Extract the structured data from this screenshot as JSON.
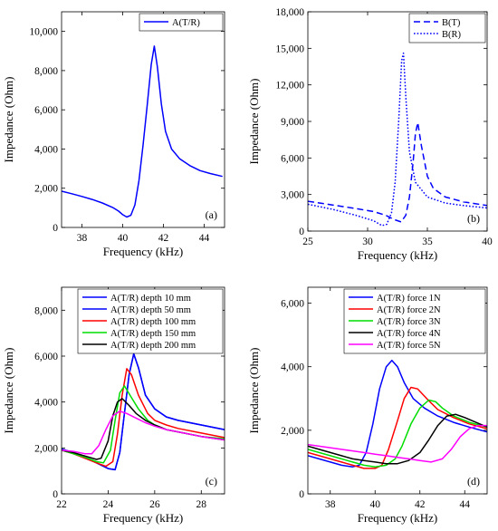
{
  "chart_data": [
    {
      "panel_label": "(a)",
      "type": "line",
      "xlabel": "Frequency (kHz)",
      "ylabel": "Impedance (Ohm)",
      "xlim": [
        37,
        45
      ],
      "ylim": [
        0,
        11000
      ],
      "xticks": [
        38,
        40,
        42,
        44
      ],
      "yticks": [
        0,
        2000,
        4000,
        6000,
        8000,
        10000
      ],
      "ytick_labels": [
        "0",
        "2,000",
        "4,000",
        "6,000",
        "8,000",
        "10,000"
      ],
      "legend_position": "top-right",
      "series": [
        {
          "name": "A(T/R)",
          "color": "#0000ff",
          "style": "solid",
          "x": [
            37,
            37.5,
            38,
            38.5,
            39,
            39.5,
            39.8,
            40,
            40.2,
            40.4,
            40.6,
            40.8,
            41,
            41.2,
            41.4,
            41.55,
            41.7,
            41.9,
            42.1,
            42.4,
            42.8,
            43.3,
            43.8,
            44.3,
            44.9
          ],
          "y": [
            1850,
            1720,
            1580,
            1430,
            1250,
            1020,
            830,
            650,
            530,
            620,
            1150,
            2400,
            4200,
            6200,
            8300,
            9250,
            8200,
            6300,
            4900,
            4000,
            3500,
            3150,
            2900,
            2750,
            2600
          ]
        }
      ]
    },
    {
      "panel_label": "(b)",
      "type": "line",
      "xlabel": "Frequency (kHz)",
      "ylabel": "Impedance (Ohm)",
      "xlim": [
        25,
        40
      ],
      "ylim": [
        0,
        18000
      ],
      "xticks": [
        25,
        30,
        35,
        40
      ],
      "yticks": [
        0,
        3000,
        6000,
        9000,
        12000,
        15000,
        18000
      ],
      "ytick_labels": [
        "0",
        "3,000",
        "6,000",
        "9,000",
        "12,000",
        "15,000",
        "18,000"
      ],
      "legend_position": "top-right",
      "series": [
        {
          "name": "B(T)",
          "color": "#0000ff",
          "style": "dashed",
          "x": [
            25,
            27,
            29,
            30.5,
            31.5,
            32.2,
            32.8,
            33.2,
            33.5,
            33.8,
            34,
            34.2,
            34.5,
            35,
            35.5,
            36.5,
            38,
            40
          ],
          "y": [
            2450,
            2150,
            1850,
            1600,
            1300,
            950,
            750,
            1300,
            2800,
            5600,
            8000,
            8900,
            7000,
            4500,
            3500,
            2800,
            2400,
            2100
          ]
        },
        {
          "name": "B(R)",
          "color": "#0000ff",
          "style": "dotted",
          "x": [
            25,
            27,
            29,
            30.5,
            31.2,
            31.6,
            32,
            32.3,
            32.6,
            32.85,
            33,
            33.2,
            33.5,
            34,
            35,
            36.5,
            38,
            40
          ],
          "y": [
            2200,
            1800,
            1300,
            850,
            450,
            550,
            1500,
            4000,
            9000,
            14000,
            14600,
            11000,
            6500,
            4000,
            2800,
            2300,
            2100,
            1900
          ]
        }
      ]
    },
    {
      "panel_label": "(c)",
      "type": "line",
      "xlabel": "Frequency (kHz)",
      "ylabel": "Impedance (Ohm)",
      "xlim": [
        22,
        29
      ],
      "ylim": [
        0,
        9000
      ],
      "xticks": [
        22,
        24,
        26,
        28
      ],
      "yticks": [
        0,
        2000,
        4000,
        6000,
        8000
      ],
      "ytick_labels": [
        "0",
        "2,000",
        "4,000",
        "6,000",
        "8,000"
      ],
      "legend_position": "top-right",
      "series": [
        {
          "name": "A(T/R) depth 10 mm",
          "color": "#0000ff",
          "style": "solid",
          "x": [
            22,
            22.5,
            23,
            23.5,
            24,
            24.3,
            24.5,
            24.7,
            24.9,
            25.1,
            25.3,
            25.6,
            26,
            26.5,
            27,
            28,
            29
          ],
          "y": [
            1950,
            1800,
            1600,
            1350,
            1100,
            1050,
            1800,
            3500,
            5200,
            6100,
            5500,
            4300,
            3700,
            3350,
            3200,
            3000,
            2800
          ]
        },
        {
          "name": "A(T/R) depth 50 mm",
          "color": "#0000ff",
          "style": "solid",
          "x": [
            22,
            22.5,
            23,
            23.5,
            24,
            24.3,
            24.5,
            24.7,
            24.9,
            25.1,
            25.3,
            25.6,
            26,
            26.5,
            27,
            28,
            29
          ],
          "y": [
            1950,
            1800,
            1600,
            1350,
            1100,
            1050,
            1800,
            3500,
            5200,
            6100,
            5500,
            4300,
            3700,
            3350,
            3200,
            3000,
            2800
          ]
        },
        {
          "name": "A(T/R) depth 100 mm",
          "color": "#ff0000",
          "style": "solid",
          "x": [
            22,
            22.5,
            23,
            23.5,
            23.9,
            24.2,
            24.4,
            24.6,
            24.8,
            25,
            25.3,
            25.7,
            26,
            26.5,
            27,
            28,
            29
          ],
          "y": [
            1900,
            1750,
            1550,
            1350,
            1200,
            1400,
            2600,
            4300,
            5450,
            5200,
            4300,
            3500,
            3200,
            3000,
            2850,
            2650,
            2450
          ]
        },
        {
          "name": "A(T/R) depth 150 mm",
          "color": "#00dd00",
          "style": "solid",
          "x": [
            22,
            22.5,
            23,
            23.5,
            23.8,
            24.1,
            24.3,
            24.5,
            24.7,
            25,
            25.3,
            25.7,
            26,
            26.5,
            27,
            28,
            29
          ],
          "y": [
            1900,
            1750,
            1600,
            1400,
            1350,
            1900,
            3200,
            4400,
            4700,
            4200,
            3700,
            3200,
            3000,
            2800,
            2700,
            2500,
            2400
          ]
        },
        {
          "name": "A(T/R) depth 200 mm",
          "color": "#000000",
          "style": "solid",
          "x": [
            22,
            22.5,
            23,
            23.5,
            23.7,
            24,
            24.2,
            24.4,
            24.6,
            24.9,
            25.2,
            25.6,
            26,
            26.5,
            27,
            28,
            29
          ],
          "y": [
            1900,
            1800,
            1650,
            1500,
            1550,
            2300,
            3400,
            4000,
            4150,
            3850,
            3500,
            3200,
            3000,
            2800,
            2700,
            2500,
            2350
          ]
        },
        {
          "name": "",
          "color": "#ff00ff",
          "style": "solid",
          "x": [
            22,
            22.5,
            23,
            23.3,
            23.6,
            23.9,
            24.2,
            24.5,
            24.8,
            25.2,
            25.6,
            26,
            26.5,
            27,
            28,
            29
          ],
          "y": [
            1900,
            1850,
            1750,
            1750,
            2100,
            2800,
            3400,
            3600,
            3500,
            3300,
            3100,
            2950,
            2800,
            2700,
            2500,
            2350
          ]
        }
      ]
    },
    {
      "panel_label": "(d)",
      "type": "line",
      "xlabel": "Frequency (kHz)",
      "ylabel": "Impedance (Ohm)",
      "xlim": [
        37,
        45
      ],
      "ylim": [
        0,
        6500
      ],
      "xticks": [
        38,
        40,
        42,
        44
      ],
      "yticks": [
        0,
        2000,
        4000,
        6000
      ],
      "ytick_labels": [
        "0",
        "2,000",
        "4,000",
        "6,000"
      ],
      "legend_position": "top-right",
      "series": [
        {
          "name": "A(T/R) force 1N",
          "color": "#0000ff",
          "style": "solid",
          "x": [
            37,
            37.5,
            38,
            38.5,
            39,
            39.3,
            39.6,
            39.9,
            40.2,
            40.5,
            40.75,
            41,
            41.3,
            41.7,
            42.2,
            42.8,
            43.5,
            44.2,
            45
          ],
          "y": [
            1200,
            1100,
            1000,
            900,
            850,
            900,
            1300,
            2200,
            3300,
            4000,
            4200,
            4000,
            3500,
            3000,
            2700,
            2450,
            2250,
            2100,
            1950
          ]
        },
        {
          "name": "A(T/R) force 2N",
          "color": "#ff0000",
          "style": "solid",
          "x": [
            37,
            37.5,
            38,
            38.5,
            39,
            39.5,
            40,
            40.3,
            40.6,
            41,
            41.3,
            41.6,
            41.9,
            42.3,
            42.8,
            43.5,
            44.2,
            45
          ],
          "y": [
            1300,
            1200,
            1100,
            1000,
            900,
            800,
            800,
            900,
            1400,
            2300,
            3000,
            3350,
            3300,
            3000,
            2650,
            2400,
            2200,
            2050
          ]
        },
        {
          "name": "A(T/R) force 3N",
          "color": "#00dd00",
          "style": "solid",
          "x": [
            37,
            37.5,
            38,
            38.5,
            39,
            39.5,
            40,
            40.5,
            40.9,
            41.2,
            41.6,
            42,
            42.4,
            42.7,
            43,
            43.5,
            44.2,
            45
          ],
          "y": [
            1400,
            1300,
            1200,
            1100,
            1000,
            900,
            850,
            900,
            1100,
            1500,
            2200,
            2700,
            2950,
            2900,
            2700,
            2450,
            2250,
            2100
          ]
        },
        {
          "name": "A(T/R) force 4N",
          "color": "#000000",
          "style": "solid",
          "x": [
            37,
            37.5,
            38,
            38.5,
            39,
            39.5,
            40,
            40.5,
            41,
            41.5,
            42,
            42.4,
            42.8,
            43.2,
            43.6,
            44,
            44.5,
            45
          ],
          "y": [
            1500,
            1400,
            1300,
            1200,
            1100,
            1050,
            1000,
            950,
            950,
            1050,
            1300,
            1700,
            2150,
            2450,
            2500,
            2400,
            2250,
            2100
          ]
        },
        {
          "name": "A(T/R) force 5N",
          "color": "#ff00ff",
          "style": "solid",
          "x": [
            37,
            37.5,
            38,
            38.5,
            39,
            39.5,
            40,
            40.5,
            41,
            41.5,
            42,
            42.5,
            43,
            43.4,
            43.8,
            44.2,
            44.6,
            45
          ],
          "y": [
            1550,
            1500,
            1450,
            1400,
            1350,
            1300,
            1250,
            1200,
            1150,
            1100,
            1050,
            1000,
            1100,
            1400,
            1800,
            2050,
            2150,
            2150
          ]
        }
      ]
    }
  ]
}
